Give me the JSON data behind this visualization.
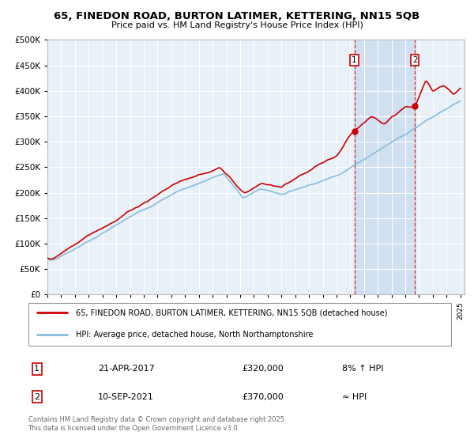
{
  "title1": "65, FINEDON ROAD, BURTON LATIMER, KETTERING, NN15 5QB",
  "title2": "Price paid vs. HM Land Registry's House Price Index (HPI)",
  "legend_line1": "65, FINEDON ROAD, BURTON LATIMER, KETTERING, NN15 5QB (detached house)",
  "legend_line2": "HPI: Average price, detached house, North Northamptonshire",
  "transaction1_date": "21-APR-2017",
  "transaction1_price": "£320,000",
  "transaction1_hpi": "8% ↑ HPI",
  "transaction2_date": "10-SEP-2021",
  "transaction2_price": "£370,000",
  "transaction2_hpi": "≈ HPI",
  "sale1_year": 2017.3,
  "sale1_value": 320000,
  "sale2_year": 2021.7,
  "sale2_value": 370000,
  "ylim": [
    0,
    500000
  ],
  "yticks": [
    0,
    50000,
    100000,
    150000,
    200000,
    250000,
    300000,
    350000,
    400000,
    450000,
    500000
  ],
  "fig_bg_color": "#ffffff",
  "plot_bg_color": "#e8f0f8",
  "grid_color": "#ffffff",
  "red_line_color": "#cc0000",
  "blue_line_color": "#88bbdd",
  "shade_color": "#ccddf0",
  "dashed_color": "#cc0000",
  "footnote": "Contains HM Land Registry data © Crown copyright and database right 2025.\nThis data is licensed under the Open Government Licence v3.0."
}
